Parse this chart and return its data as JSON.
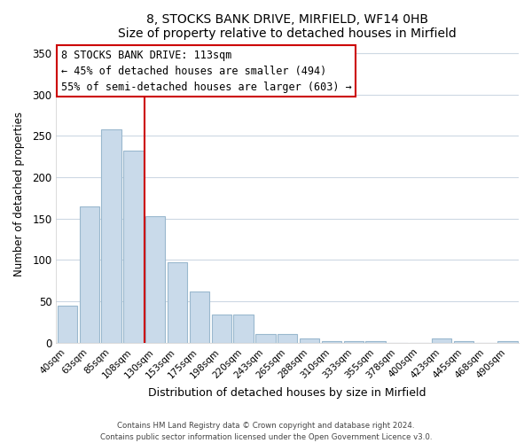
{
  "title": "8, STOCKS BANK DRIVE, MIRFIELD, WF14 0HB",
  "subtitle": "Size of property relative to detached houses in Mirfield",
  "xlabel": "Distribution of detached houses by size in Mirfield",
  "ylabel": "Number of detached properties",
  "bar_color": "#c9daea",
  "bar_edge_color": "#9ab8ce",
  "vline_color": "#cc0000",
  "vline_x": 3.5,
  "categories": [
    "40sqm",
    "63sqm",
    "85sqm",
    "108sqm",
    "130sqm",
    "153sqm",
    "175sqm",
    "198sqm",
    "220sqm",
    "243sqm",
    "265sqm",
    "288sqm",
    "310sqm",
    "333sqm",
    "355sqm",
    "378sqm",
    "400sqm",
    "423sqm",
    "445sqm",
    "468sqm",
    "490sqm"
  ],
  "values": [
    45,
    165,
    258,
    232,
    153,
    97,
    62,
    34,
    34,
    11,
    11,
    5,
    2,
    2,
    2,
    0,
    0,
    5,
    2,
    0,
    2
  ],
  "ylim": [
    0,
    360
  ],
  "yticks": [
    0,
    50,
    100,
    150,
    200,
    250,
    300,
    350
  ],
  "annotation_title": "8 STOCKS BANK DRIVE: 113sqm",
  "annotation_line1": "← 45% of detached houses are smaller (494)",
  "annotation_line2": "55% of semi-detached houses are larger (603) →",
  "annotation_box_color": "#ffffff",
  "annotation_box_edge": "#cc0000",
  "footer1": "Contains HM Land Registry data © Crown copyright and database right 2024.",
  "footer2": "Contains public sector information licensed under the Open Government Licence v3.0."
}
